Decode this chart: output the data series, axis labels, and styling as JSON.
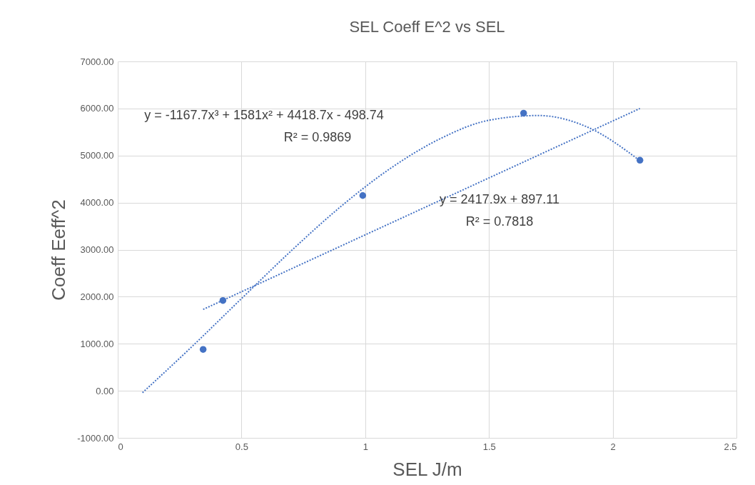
{
  "chart_data": {
    "type": "scatter",
    "title": "SEL Coeff E^2 vs SEL",
    "xlabel": "SEL J/m",
    "ylabel": "Coeff Eeff^2",
    "xlim": [
      0,
      2.5
    ],
    "xticks": [
      0,
      0.5,
      1,
      1.5,
      2,
      2.5
    ],
    "ylim": [
      -1000,
      7000
    ],
    "yticks": [
      {
        "value": -1000,
        "label": "-1000.00"
      },
      {
        "value": 0,
        "label": "0.00"
      },
      {
        "value": 1000,
        "label": "1000.00"
      },
      {
        "value": 2000,
        "label": "2000.00"
      },
      {
        "value": 3000,
        "label": "3000.00"
      },
      {
        "value": 4000,
        "label": "4000.00"
      },
      {
        "value": 5000,
        "label": "5000.00"
      },
      {
        "value": 6000,
        "label": "6000.00"
      },
      {
        "value": 7000,
        "label": "7000.00"
      }
    ],
    "grid": true,
    "series": [
      {
        "color": "#4472c4",
        "marker": "circle",
        "x": [
          0.345,
          0.425,
          0.99,
          1.64,
          2.11
        ],
        "values": [
          880,
          1920,
          4150,
          5900,
          4900
        ]
      },
      {
        "type": "line",
        "color": "#4472c4",
        "marker": "none",
        "line_style": "dotted",
        "x": [
          0.1,
          0.3,
          0.5,
          0.7,
          0.9,
          1.1,
          1.3,
          1.5,
          1.7,
          1.9,
          2.11
        ],
        "values": [
          -40,
          940,
          1960,
          2970,
          3910,
          4720,
          5350,
          5750,
          5850,
          5600,
          4890
        ]
      },
      {
        "type": "line",
        "color": "#4472c4",
        "marker": "none",
        "line_style": "dotted",
        "x": [
          0.345,
          2.11
        ],
        "values": [
          1730,
          6000
        ]
      }
    ],
    "annotations": [
      "y = -1167.7x³ + 1581x² + 4418.7x - 498.74",
      "R² = 0.9869",
      "y = 2417.9x + 897.11",
      "R² = 0.7818"
    ]
  }
}
